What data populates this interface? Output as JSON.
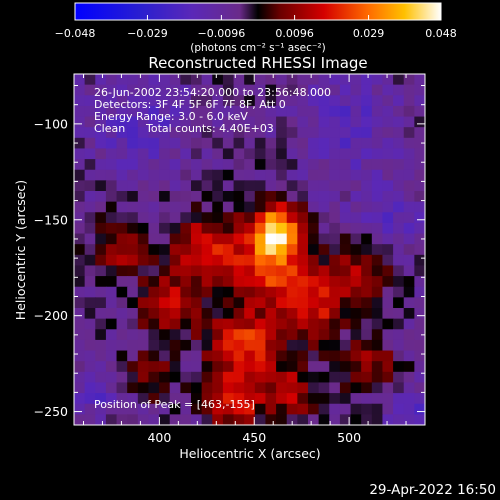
{
  "chart_data": {
    "type": "heatmap",
    "title": "Reconstructed RHESSI Image",
    "xlabel": "Heliocentric X (arcsec)",
    "ylabel": "Heliocentric Y (arcsec)",
    "xlim": [
      355,
      540
    ],
    "ylim": [
      -257,
      -74
    ],
    "x_ticks": [
      400,
      450,
      500
    ],
    "x_tick_labels": [
      "400",
      "450",
      "500"
    ],
    "y_ticks": [
      -100,
      -150,
      -200,
      -250
    ],
    "y_tick_labels": [
      "−100",
      "−150",
      "−200",
      "−250"
    ],
    "colorbar": {
      "min": -0.048,
      "max": 0.048,
      "ticks": [
        -0.048,
        -0.029,
        -0.0096,
        0.0096,
        0.029,
        0.048
      ],
      "tick_labels": [
        "−0.048",
        "−0.029",
        "−0.0096",
        "0.0096",
        "0.029",
        "0.048"
      ],
      "units_label": "(photons cm⁻² s⁻¹ asec⁻²)"
    },
    "annotations": {
      "time_range": "26-Jun-2002 23:54:20.000 to 23:56:48.000",
      "detectors": "Detectors: 3F 4F 5F 6F 7F 8F, Att 0",
      "energy_range": "Energy Range: 3.0 - 6.0 keV",
      "method": "Clean",
      "total_counts": "Total counts: 4.40E+03",
      "peak_position": "Position of Peak = [463,-155]"
    },
    "peak": [
      463,
      -155
    ],
    "image_grid": {
      "nx": 33,
      "ny": 33,
      "x_range": [
        355,
        540
      ],
      "y_range": [
        -257,
        -74
      ],
      "sources": [
        {
          "x": 462,
          "y": -155,
          "amp": 0.046,
          "sigma": 9
        },
        {
          "x": 458,
          "y": -175,
          "amp": 0.03,
          "sigma": 12
        },
        {
          "x": 425,
          "y": -165,
          "amp": 0.024,
          "sigma": 13
        },
        {
          "x": 405,
          "y": -195,
          "amp": 0.022,
          "sigma": 11
        },
        {
          "x": 480,
          "y": -195,
          "amp": 0.024,
          "sigma": 12
        },
        {
          "x": 445,
          "y": -215,
          "amp": 0.028,
          "sigma": 13
        },
        {
          "x": 505,
          "y": -175,
          "amp": 0.018,
          "sigma": 12
        },
        {
          "x": 440,
          "y": -245,
          "amp": 0.026,
          "sigma": 10
        },
        {
          "x": 510,
          "y": -225,
          "amp": 0.016,
          "sigma": 10
        },
        {
          "x": 380,
          "y": -165,
          "amp": 0.016,
          "sigma": 10
        },
        {
          "x": 395,
          "y": -230,
          "amp": 0.014,
          "sigma": 9
        },
        {
          "x": 470,
          "y": -240,
          "amp": 0.02,
          "sigma": 9
        },
        {
          "x": 520,
          "y": -150,
          "amp": -0.01,
          "sigma": 15
        },
        {
          "x": 390,
          "y": -100,
          "amp": -0.012,
          "sigma": 18
        },
        {
          "x": 500,
          "y": -100,
          "amp": -0.012,
          "sigma": 18
        },
        {
          "x": 365,
          "y": -240,
          "amp": -0.012,
          "sigma": 10
        },
        {
          "x": 535,
          "y": -250,
          "amp": -0.012,
          "sigma": 10
        }
      ]
    }
  },
  "footer": {
    "timestamp": "29-Apr-2022 16:50"
  }
}
